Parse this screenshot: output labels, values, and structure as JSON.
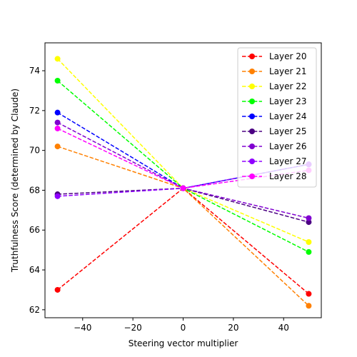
{
  "chart_data": {
    "type": "line",
    "title": "",
    "xlabel": "Steering vector multiplier",
    "ylabel": "Truthfulness Score (determined by Claude)",
    "x": [
      -50,
      0,
      50
    ],
    "xlim": [
      -55,
      55
    ],
    "ylim": [
      61.6,
      75.4
    ],
    "xticks": [
      -40,
      -20,
      0,
      20,
      40
    ],
    "yticks": [
      62,
      64,
      66,
      68,
      70,
      72,
      74
    ],
    "grid": false,
    "legend_position": "top-right",
    "line_style": "dashed",
    "series": [
      {
        "name": "Layer 20",
        "color": "#ff0000",
        "values": [
          63.0,
          68.1,
          62.8
        ]
      },
      {
        "name": "Layer 21",
        "color": "#ff8000",
        "values": [
          70.2,
          68.1,
          62.2
        ]
      },
      {
        "name": "Layer 22",
        "color": "#ffff00",
        "values": [
          74.6,
          68.1,
          65.4
        ]
      },
      {
        "name": "Layer 23",
        "color": "#00ff00",
        "values": [
          73.5,
          68.1,
          64.9
        ]
      },
      {
        "name": "Layer 24",
        "color": "#0000ff",
        "values": [
          71.9,
          68.1,
          69.3
        ]
      },
      {
        "name": "Layer 25",
        "color": "#4b0082",
        "values": [
          67.8,
          68.1,
          66.4
        ]
      },
      {
        "name": "Layer 26",
        "color": "#8000d0",
        "values": [
          71.4,
          68.1,
          66.6
        ]
      },
      {
        "name": "Layer 27",
        "color": "#8f00ff",
        "values": [
          67.7,
          68.1,
          69.3
        ]
      },
      {
        "name": "Layer 28",
        "color": "#ff00ff",
        "values": [
          71.1,
          68.1,
          69.0
        ]
      }
    ]
  }
}
